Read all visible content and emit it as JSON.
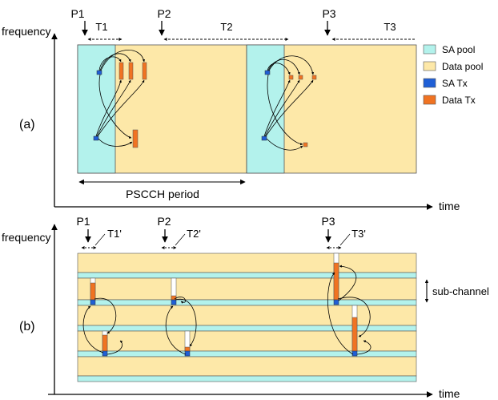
{
  "panel_a": {
    "label": "(a)",
    "y_axis_label": "frequency",
    "x_axis_label": "time",
    "points": [
      "P1",
      "P2",
      "P3"
    ],
    "periods": [
      "T1",
      "T2",
      "T3"
    ],
    "pscch_period_label": "PSCCH period"
  },
  "panel_b": {
    "label": "(b)",
    "y_axis_label": "frequency",
    "x_axis_label": "time",
    "points": [
      "P1",
      "P2",
      "P3"
    ],
    "periods": [
      "T1'",
      "T2'",
      "T3'"
    ],
    "subchannel_label": "sub-channel"
  },
  "legend": [
    {
      "label": "SA pool",
      "color": "#b3f2ec"
    },
    {
      "label": "Data pool",
      "color": "#fde8a8"
    },
    {
      "label": "SA Tx",
      "color": "#1f5fd6"
    },
    {
      "label": "Data Tx",
      "color": "#f07322"
    }
  ],
  "colors": {
    "sa_pool": "#b3f2ec",
    "data_pool": "#fde8a8",
    "sa_tx": "#1f5fd6",
    "data_tx": "#f07322",
    "outline": "#555555"
  }
}
